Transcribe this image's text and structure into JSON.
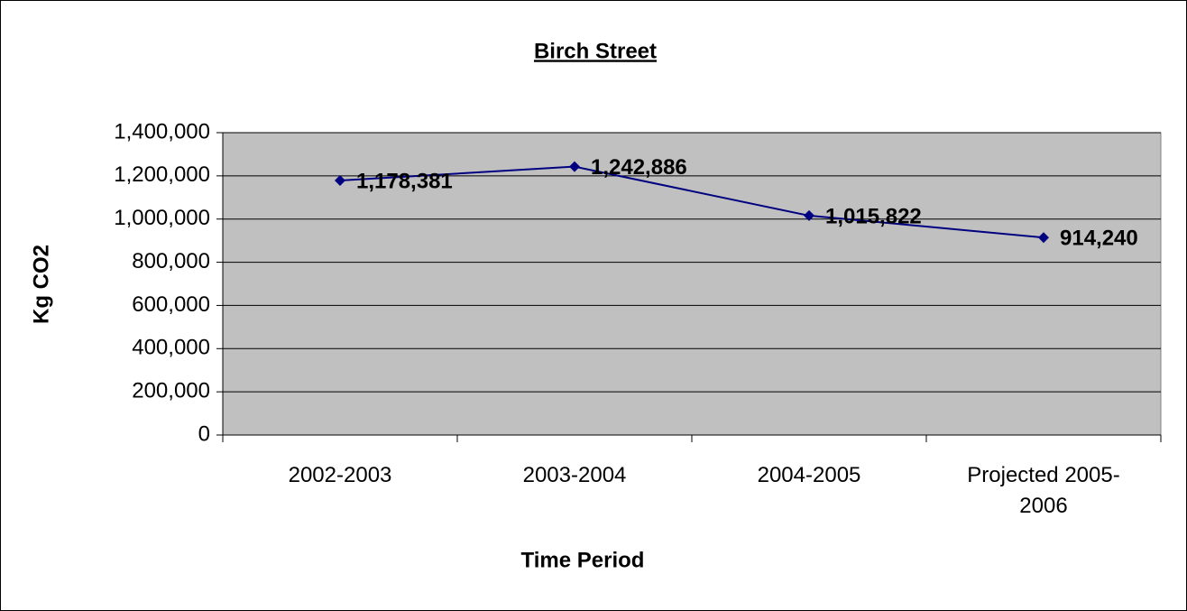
{
  "chart_data": {
    "type": "line",
    "title": "Birch Street",
    "x_label": "Time Period",
    "y_label": "Kg CO2",
    "categories": [
      "2002-2003",
      "2003-2004",
      "2004-2005",
      "Projected 2005-2006"
    ],
    "series": [
      {
        "name": "Birch Street",
        "color": "#000080",
        "values": [
          1178381,
          1242886,
          1015822,
          914240
        ],
        "value_labels": [
          "1,178,381",
          "1,242,886",
          "1,015,822",
          "914,240"
        ]
      }
    ],
    "ylim": [
      0,
      1400000
    ],
    "yticks": [
      0,
      {
        "value": 200000,
        "label": "200,000"
      },
      {
        "value": 400000,
        "label": "400,000"
      },
      {
        "value": 600000,
        "label": "600,000"
      },
      {
        "value": 800000,
        "label": "800,000"
      },
      {
        "value": 1000000,
        "label": "1,000,000"
      },
      {
        "value": 1200000,
        "label": "1,200,000"
      },
      {
        "value": 1400000,
        "label": "1,400,000"
      }
    ],
    "grid": true,
    "plot_background": "#c0c0c0"
  }
}
